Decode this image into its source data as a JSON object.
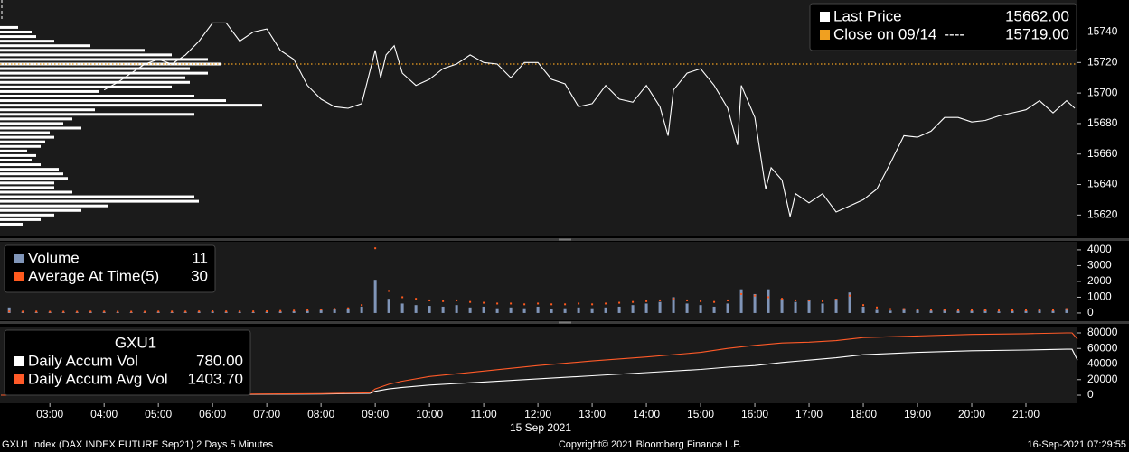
{
  "chart_data": [
    {
      "type": "line",
      "xlim": [
        2.08,
        21.95
      ],
      "ylim": [
        15606,
        15761
      ],
      "yticks": [
        15620,
        15640,
        15660,
        15680,
        15700,
        15720,
        15740
      ],
      "legend": "top-right",
      "x": [
        4,
        4.25,
        4.5,
        4.75,
        5,
        5.25,
        5.5,
        5.75,
        6,
        6.25,
        6.5,
        6.75,
        7,
        7.25,
        7.5,
        7.75,
        8,
        8.25,
        8.5,
        8.75,
        9,
        9.1,
        9.2,
        9.35,
        9.5,
        9.75,
        10,
        10.25,
        10.5,
        10.75,
        11,
        11.25,
        11.5,
        11.75,
        12,
        12.25,
        12.5,
        12.75,
        13,
        13.25,
        13.5,
        13.75,
        14,
        14.25,
        14.4,
        14.5,
        14.75,
        15,
        15.25,
        15.5,
        15.68,
        15.75,
        16,
        16.2,
        16.3,
        16.5,
        16.65,
        16.75,
        17,
        17.25,
        17.5,
        17.75,
        18,
        18.25,
        18.5,
        18.75,
        19,
        19.25,
        19.5,
        19.75,
        20,
        20.25,
        20.5,
        20.75,
        21,
        21.25,
        21.5,
        21.75,
        21.9
      ],
      "series": [
        {
          "name": "Last Price",
          "color": "#ffffff",
          "type": "line",
          "legend_value": {
            "value": 15662,
            "label": "15662.00"
          },
          "values": [
            15702,
            15707,
            15713,
            15719,
            15722,
            15719,
            15725,
            15734,
            15746,
            15746,
            15734,
            15740,
            15742,
            15728,
            15722,
            15705,
            15696,
            15691,
            15690,
            15693,
            15728,
            15710,
            15725,
            15731,
            15713,
            15705,
            15709,
            15716,
            15719,
            15725,
            15720,
            15719,
            15710,
            15720,
            15720,
            15709,
            15706,
            15691,
            15693,
            15705,
            15696,
            15694,
            15705,
            15691,
            15672,
            15702,
            15713,
            15716,
            15705,
            15690,
            15666,
            15705,
            15684,
            15637,
            15651,
            15643,
            15619,
            15634,
            15628,
            15634,
            15622,
            15626,
            15630,
            15637,
            15654,
            15672,
            15671,
            15675,
            15684,
            15684,
            15681,
            15682,
            15685,
            15687,
            15689,
            15695,
            15687,
            15695,
            15690
          ]
        }
      ],
      "reference_lines": [
        {
          "name": "Close on 09/14",
          "legend_symbol": "----",
          "value": 15719,
          "value_label": "15719.00",
          "color": "#f0a020"
        }
      ],
      "profile": {
        "color": "#ffffff",
        "prices": [
          15743,
          15740,
          15737,
          15734,
          15731,
          15728,
          15725,
          15722,
          15719,
          15716,
          15713,
          15710,
          15707,
          15704,
          15701,
          15698,
          15695,
          15692,
          15689,
          15686,
          15683,
          15680,
          15677,
          15674,
          15671,
          15668,
          15665,
          15662,
          15659,
          15656,
          15653,
          15650,
          15647,
          15644,
          15641,
          15638,
          15635,
          15632,
          15629,
          15626,
          15623,
          15620,
          15617,
          15614
        ],
        "values": [
          20,
          35,
          40,
          60,
          100,
          160,
          190,
          230,
          245,
          210,
          230,
          205,
          210,
          190,
          110,
          215,
          250,
          290,
          105,
          215,
          80,
          70,
          90,
          55,
          60,
          50,
          45,
          30,
          40,
          35,
          45,
          65,
          70,
          75,
          60,
          60,
          80,
          215,
          220,
          120,
          90,
          60,
          45,
          25
        ]
      }
    },
    {
      "type": "bar",
      "xlim": [
        2.08,
        21.95
      ],
      "ylim": [
        -460,
        4510
      ],
      "yticks": [
        0,
        1000,
        2000,
        3000,
        4000
      ],
      "legend": "top-left",
      "x": [
        2.25,
        2.5,
        2.75,
        3,
        3.25,
        3.5,
        3.75,
        4,
        4.25,
        4.5,
        4.75,
        5,
        5.25,
        5.5,
        5.75,
        6,
        6.25,
        6.5,
        6.75,
        7,
        7.25,
        7.5,
        7.75,
        8,
        8.25,
        8.5,
        8.75,
        9,
        9.25,
        9.5,
        9.75,
        10,
        10.25,
        10.5,
        10.75,
        11,
        11.25,
        11.5,
        11.75,
        12,
        12.25,
        12.5,
        12.75,
        13,
        13.25,
        13.5,
        13.75,
        14,
        14.25,
        14.5,
        14.75,
        15,
        15.25,
        15.5,
        15.75,
        16,
        16.25,
        16.5,
        16.75,
        17,
        17.25,
        17.5,
        17.75,
        18,
        18.25,
        18.5,
        18.75,
        19,
        19.25,
        19.5,
        19.75,
        20,
        20.25,
        20.5,
        20.75,
        21,
        21.25,
        21.5,
        21.75
      ],
      "series": [
        {
          "name": "Volume",
          "color": "#8095b8",
          "type": "bar",
          "legend_value": 11,
          "values": [
            350,
            80,
            60,
            70,
            50,
            60,
            80,
            70,
            60,
            50,
            60,
            80,
            60,
            70,
            90,
            100,
            80,
            70,
            60,
            80,
            100,
            120,
            150,
            200,
            250,
            300,
            400,
            2100,
            900,
            600,
            500,
            450,
            400,
            500,
            350,
            400,
            300,
            350,
            300,
            400,
            250,
            300,
            350,
            300,
            350,
            400,
            500,
            600,
            700,
            1000,
            600,
            500,
            400,
            600,
            1500,
            1200,
            1500,
            900,
            700,
            800,
            600,
            900,
            1300,
            400,
            200,
            150,
            300,
            200,
            150,
            200,
            150,
            150,
            200,
            100,
            150,
            150,
            200,
            150,
            300
          ]
        },
        {
          "name": "Average At Time(5)",
          "color": "#ff5a1e",
          "type": "dot",
          "legend_value": 30,
          "values": [
            100,
            90,
            90,
            80,
            80,
            80,
            90,
            90,
            80,
            80,
            80,
            90,
            90,
            90,
            100,
            110,
            100,
            100,
            100,
            110,
            130,
            150,
            180,
            220,
            260,
            300,
            500,
            4100,
            1400,
            1000,
            900,
            800,
            750,
            800,
            700,
            650,
            600,
            600,
            550,
            600,
            550,
            550,
            600,
            550,
            600,
            650,
            700,
            750,
            800,
            900,
            800,
            750,
            700,
            800,
            1200,
            1100,
            1000,
            900,
            800,
            800,
            750,
            850,
            1100,
            500,
            350,
            250,
            250,
            220,
            200,
            200,
            180,
            180,
            170,
            160,
            170,
            170,
            180,
            180,
            250
          ]
        }
      ]
    },
    {
      "type": "line",
      "xlim": [
        2.08,
        21.95
      ],
      "ylim": [
        -10400,
        88100
      ],
      "yticks": [
        0,
        20000,
        40000,
        60000,
        80000
      ],
      "xticks": [
        {
          "value": 3,
          "label": "03:00"
        },
        {
          "value": 4,
          "label": "04:00"
        },
        {
          "value": 5,
          "label": "05:00"
        },
        {
          "value": 6,
          "label": "06:00"
        },
        {
          "value": 7,
          "label": "07:00"
        },
        {
          "value": 8,
          "label": "08:00"
        },
        {
          "value": 9,
          "label": "09:00"
        },
        {
          "value": 10,
          "label": "10:00"
        },
        {
          "value": 11,
          "label": "11:00"
        },
        {
          "value": 12,
          "label": "12:00"
        },
        {
          "value": 13,
          "label": "13:00"
        },
        {
          "value": 14,
          "label": "14:00"
        },
        {
          "value": 15,
          "label": "15:00"
        },
        {
          "value": 16,
          "label": "16:00"
        },
        {
          "value": 17,
          "label": "17:00"
        },
        {
          "value": 18,
          "label": "18:00"
        },
        {
          "value": 19,
          "label": "19:00"
        },
        {
          "value": 20,
          "label": "20:00"
        },
        {
          "value": 21,
          "label": "21:00"
        }
      ],
      "xlabel": "15 Sep 2021",
      "legend": "top-left",
      "legend_title": "GXU1",
      "x": [
        2.1,
        4,
        6,
        8,
        8.9,
        9,
        9.25,
        9.5,
        10,
        11,
        12,
        13,
        14,
        15,
        15.5,
        16,
        16.5,
        17,
        17.5,
        18,
        19,
        20,
        21,
        21.75,
        21.85,
        21.95
      ],
      "series": [
        {
          "name": "Daily Accum Vol",
          "color": "#ffffff",
          "type": "line",
          "legend_value": {
            "value": 780,
            "label": "780.00"
          },
          "values": [
            0,
            300,
            800,
            1500,
            2500,
            5000,
            8000,
            10000,
            13000,
            17000,
            21000,
            25000,
            29000,
            33000,
            36000,
            38000,
            42000,
            45000,
            48000,
            52000,
            55000,
            57000,
            58000,
            59000,
            59000,
            45000
          ]
        },
        {
          "name": "Daily Accum Avg Vol",
          "color": "#ff5a28",
          "type": "line",
          "legend_value": {
            "value": 1403.7,
            "label": "1403.70"
          },
          "values": [
            0,
            500,
            1200,
            2000,
            3000,
            8000,
            14000,
            18000,
            24000,
            31000,
            38000,
            44000,
            49000,
            55000,
            60000,
            64000,
            67000,
            68000,
            70000,
            74000,
            76000,
            78000,
            79000,
            80000,
            80000,
            72000
          ]
        }
      ]
    }
  ],
  "footer": {
    "left": "GXU1 Index (DAX INDEX FUTURE  Sep21) 2 Days 5 Minutes",
    "center": "Copyright© 2021 Bloomberg Finance L.P.",
    "right": "16-Sep-2021 07:29:55"
  }
}
